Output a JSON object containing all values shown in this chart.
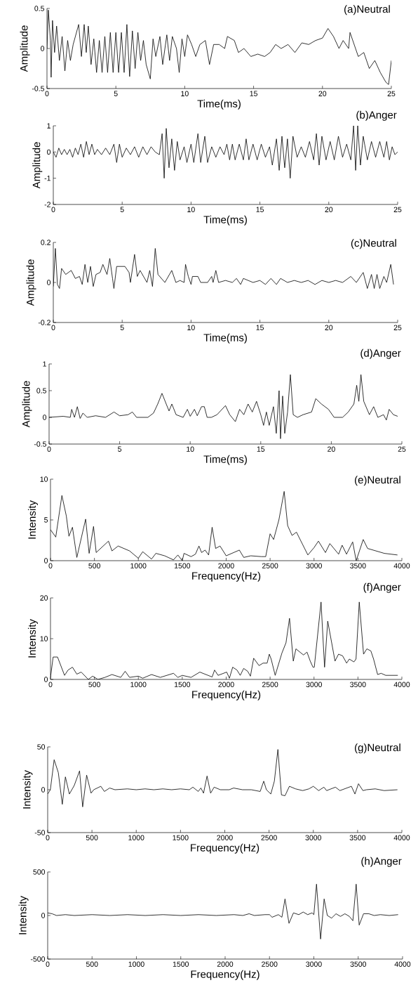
{
  "chart_data": [
    {
      "type": "line",
      "title": "(a)Neutral",
      "xlabel": "Time(ms)",
      "ylabel": "Amplitude",
      "color": "#000000",
      "xlim": [
        0,
        25
      ],
      "xticks": [
        0,
        5,
        10,
        15,
        20,
        25
      ],
      "ylim": [
        -0.5,
        0.5
      ],
      "yticks": [
        -0.5,
        0,
        0.5
      ],
      "x": [
        0,
        0.1,
        0.25,
        0.3,
        0.4,
        0.55,
        0.7,
        0.9,
        1.1,
        1.3,
        1.5,
        1.7,
        1.9,
        2.3,
        2.5,
        2.7,
        2.85,
        3.0,
        3.2,
        3.4,
        3.6,
        3.8,
        4.0,
        4.2,
        4.4,
        4.6,
        4.8,
        5.0,
        5.2,
        5.4,
        5.6,
        5.8,
        6.0,
        6.2,
        6.4,
        6.6,
        6.8,
        7.0,
        7.2,
        7.5,
        7.7,
        7.9,
        8.2,
        8.4,
        8.7,
        8.9,
        9.1,
        9.4,
        9.6,
        9.8,
        10.0,
        10.2,
        10.5,
        10.8,
        11.1,
        11.5,
        11.8,
        12.1,
        12.5,
        12.9,
        13.1,
        13.6,
        13.9,
        14.3,
        14.8,
        15.3,
        15.8,
        16.2,
        16.6,
        17.0,
        17.5,
        18.0,
        18.5,
        19.0,
        19.5,
        20.0,
        20.4,
        20.8,
        21.2,
        21.5,
        21.9,
        22.0,
        22.6,
        23.0,
        23.4,
        23.8,
        24.2,
        24.6,
        24.8,
        25.0
      ],
      "values": [
        0,
        0.48,
        0.1,
        -0.36,
        0.35,
        -0.05,
        0.28,
        -0.15,
        0.15,
        -0.28,
        0.1,
        -0.15,
        0.05,
        0.3,
        -0.1,
        0.3,
        -0.05,
        0.28,
        -0.2,
        0.12,
        -0.3,
        0.1,
        -0.3,
        0.15,
        -0.3,
        0.2,
        -0.3,
        0.2,
        -0.3,
        0.2,
        -0.3,
        0.3,
        -0.35,
        0.22,
        -0.25,
        0.2,
        -0.15,
        0.1,
        -0.2,
        -0.38,
        0.12,
        -0.1,
        0.15,
        -0.2,
        0.17,
        -0.15,
        0.15,
        0.0,
        -0.3,
        0.12,
        -0.1,
        0.17,
        0.05,
        -0.1,
        0.05,
        0.1,
        -0.2,
        0.05,
        0.05,
        0.0,
        0.15,
        0.1,
        -0.05,
        0.0,
        -0.1,
        -0.07,
        -0.1,
        -0.05,
        0.05,
        0.0,
        0.05,
        -0.05,
        0.07,
        0.05,
        0.1,
        0.13,
        0.25,
        0.15,
        0.0,
        0.1,
        0.0,
        0.2,
        -0.1,
        -0.05,
        -0.25,
        -0.15,
        -0.3,
        -0.42,
        -0.45,
        -0.15
      ]
    },
    {
      "type": "line",
      "title": "(b)Anger",
      "xlabel": "Time(ms)",
      "ylabel": "Amplitude",
      "color": "#000000",
      "xlim": [
        0,
        25
      ],
      "xticks": [
        0,
        5,
        10,
        15,
        20,
        25
      ],
      "ylim": [
        -2,
        1
      ],
      "yticks": [
        -2,
        -1,
        0,
        1
      ],
      "x": [
        0,
        0.2,
        0.4,
        0.6,
        0.8,
        1.0,
        1.2,
        1.4,
        1.6,
        1.8,
        2.0,
        2.2,
        2.4,
        2.6,
        2.8,
        3.0,
        3.2,
        3.5,
        3.8,
        4.1,
        4.4,
        4.6,
        4.8,
        5.0,
        5.3,
        5.6,
        5.9,
        6.2,
        6.5,
        6.8,
        7.1,
        7.4,
        7.7,
        7.9,
        8.05,
        8.2,
        8.4,
        8.6,
        8.8,
        9.0,
        9.2,
        9.5,
        9.7,
        10.0,
        10.2,
        10.5,
        10.7,
        11.0,
        11.2,
        11.5,
        11.8,
        12.1,
        12.4,
        12.6,
        12.8,
        13.0,
        13.2,
        13.5,
        13.8,
        14.0,
        14.2,
        14.5,
        14.8,
        15.1,
        15.4,
        15.7,
        15.9,
        16.2,
        16.4,
        16.6,
        16.8,
        17.0,
        17.2,
        17.4,
        17.7,
        18.0,
        18.3,
        18.6,
        18.9,
        19.1,
        19.3,
        19.5,
        19.8,
        20.1,
        20.4,
        20.7,
        21.0,
        21.3,
        21.6,
        21.8,
        21.95,
        22.1,
        22.3,
        22.5,
        22.8,
        23.1,
        23.4,
        23.7,
        24.0,
        24.2,
        24.4,
        24.6,
        24.8,
        25.0
      ],
      "values": [
        0,
        -0.2,
        0.15,
        -0.1,
        0.1,
        -0.1,
        0.1,
        -0.2,
        0.15,
        -0.1,
        0.3,
        -0.2,
        0.4,
        -0.1,
        0.3,
        -0.1,
        0.1,
        -0.1,
        0.15,
        -0.1,
        0.3,
        -0.4,
        0.3,
        -0.2,
        0.15,
        -0.1,
        0.2,
        -0.2,
        0.2,
        -0.1,
        0.2,
        0.0,
        -0.1,
        0.7,
        -1.0,
        0.9,
        -0.6,
        0.5,
        -0.7,
        0.4,
        -0.3,
        0.2,
        -0.4,
        0.3,
        -0.4,
        0.7,
        -0.4,
        0.6,
        -0.4,
        0.2,
        -0.2,
        0.2,
        -0.1,
        0.3,
        -0.3,
        0.3,
        -0.3,
        0.3,
        -0.3,
        0.5,
        -0.3,
        0.3,
        -0.3,
        0.3,
        -0.2,
        0.2,
        -0.5,
        0.5,
        -0.7,
        0.6,
        -0.6,
        0.5,
        -1.0,
        0.6,
        -0.2,
        0.2,
        -0.2,
        0.4,
        -0.3,
        0.7,
        -0.5,
        0.6,
        -0.3,
        0.4,
        -0.3,
        0.6,
        -0.2,
        0.3,
        -0.3,
        1.0,
        -0.7,
        1.0,
        -0.5,
        0.6,
        -0.3,
        0.4,
        -0.2,
        0.4,
        -0.2,
        0.4,
        -0.3,
        0.2,
        -0.1,
        0.0
      ]
    },
    {
      "type": "line",
      "title": "(c)Neutral",
      "xlabel": "Time(ms)",
      "ylabel": "Amplitude",
      "color": "#000000",
      "xlim": [
        0,
        25
      ],
      "xticks": [
        0,
        5,
        10,
        15,
        20,
        25
      ],
      "ylim": [
        -0.2,
        0.2
      ],
      "yticks": [
        -0.2,
        0,
        0.2
      ],
      "x": [
        0,
        0.15,
        0.3,
        0.45,
        0.6,
        0.9,
        1.3,
        1.6,
        1.9,
        2.1,
        2.3,
        2.5,
        2.7,
        2.9,
        3.1,
        3.4,
        3.6,
        3.9,
        4.1,
        4.3,
        4.4,
        4.6,
        5.2,
        5.5,
        5.6,
        5.9,
        6.1,
        6.3,
        6.8,
        7.0,
        7.2,
        7.4,
        7.6,
        8.1,
        8.6,
        8.9,
        9.2,
        9.5,
        9.6,
        9.8,
        10.0,
        10.1,
        10.5,
        10.7,
        11.2,
        11.5,
        11.6,
        11.8,
        12.0,
        12.5,
        13.0,
        13.3,
        13.6,
        13.8,
        14.5,
        15.0,
        15.4,
        15.8,
        16.2,
        16.5,
        17.0,
        17.5,
        18.0,
        18.5,
        19.0,
        19.5,
        20.0,
        20.5,
        21.0,
        21.6,
        22.0,
        22.5,
        22.8,
        23.1,
        23.3,
        23.5,
        23.7,
        24.0,
        24.2,
        24.5,
        24.7
      ],
      "values": [
        -0.02,
        0.17,
        -0.01,
        -0.03,
        0.07,
        0.04,
        0.06,
        0.02,
        0.03,
        -0.01,
        0.09,
        0.0,
        0.08,
        -0.02,
        0.04,
        0.05,
        0.09,
        0.04,
        0.12,
        0.02,
        -0.03,
        0.08,
        0.08,
        0.05,
        0.0,
        0.14,
        0.03,
        0.06,
        0.0,
        0.06,
        -0.02,
        0.17,
        0.04,
        0.0,
        0.06,
        0.0,
        0.01,
        0.0,
        0.09,
        0.03,
        -0.01,
        0.03,
        0.03,
        0.0,
        0.0,
        0.03,
        0.0,
        0.06,
        0.0,
        0.01,
        0.0,
        0.02,
        -0.01,
        0.02,
        0.0,
        0.01,
        -0.01,
        0.02,
        -0.01,
        0.02,
        0.0,
        0.01,
        0.0,
        0.01,
        -0.01,
        0.01,
        0.0,
        0.01,
        0.0,
        0.03,
        0.0,
        0.05,
        -0.03,
        0.04,
        -0.03,
        0.04,
        -0.03,
        0.03,
        0.0,
        0.09,
        -0.01
      ]
    },
    {
      "type": "line",
      "title": "(d)Anger",
      "xlabel": "Time(ms)",
      "ylabel": "Amplitude",
      "color": "#000000",
      "xlim": [
        0,
        25
      ],
      "xticks": [
        0,
        5,
        10,
        15,
        20,
        25
      ],
      "ylim": [
        -0.5,
        1
      ],
      "yticks": [
        -0.5,
        0,
        0.5,
        1
      ],
      "x": [
        0,
        1.0,
        1.5,
        1.6,
        1.8,
        2.0,
        2.2,
        2.4,
        2.7,
        3.3,
        4.0,
        4.6,
        5.0,
        5.6,
        5.9,
        6.2,
        7.0,
        7.4,
        7.7,
        8.0,
        8.3,
        8.5,
        8.7,
        9.0,
        9.5,
        9.8,
        10.0,
        10.3,
        10.5,
        10.8,
        11.0,
        11.2,
        11.5,
        11.9,
        12.5,
        12.8,
        13.2,
        13.5,
        13.8,
        14.1,
        14.4,
        14.7,
        15.0,
        15.2,
        15.4,
        15.6,
        15.9,
        16.1,
        16.3,
        16.4,
        16.55,
        16.7,
        16.9,
        17.1,
        17.3,
        17.6,
        18.0,
        18.6,
        18.9,
        19.3,
        19.8,
        20.2,
        20.8,
        21.2,
        21.6,
        21.8,
        21.95,
        22.1,
        22.3,
        22.7,
        23.0,
        23.3,
        23.7,
        23.9,
        24.1,
        24.4,
        24.7
      ],
      "values": [
        0,
        0.02,
        0.0,
        0.15,
        0.0,
        0.2,
        -0.02,
        0.08,
        0.0,
        0.03,
        0.0,
        0.1,
        0.03,
        0.05,
        0.1,
        0.0,
        0.0,
        0.08,
        0.25,
        0.45,
        0.25,
        0.12,
        0.25,
        0.05,
        0.0,
        0.15,
        0.02,
        0.15,
        0.03,
        0.2,
        0.2,
        0.0,
        0.0,
        0.05,
        0.22,
        0.05,
        -0.08,
        0.15,
        0.05,
        0.25,
        0.1,
        0.3,
        0.05,
        -0.15,
        0.1,
        -0.15,
        0.2,
        -0.3,
        0.5,
        -0.4,
        0.4,
        -0.3,
        0.1,
        0.8,
        0.05,
        0.0,
        0.05,
        0.1,
        0.35,
        0.25,
        0.15,
        0.0,
        0.0,
        0.1,
        0.25,
        0.6,
        0.3,
        0.8,
        0.3,
        0.05,
        0.2,
        0.0,
        0.05,
        -0.05,
        0.15,
        0.05,
        0.02
      ]
    },
    {
      "type": "line",
      "title": "(e)Neutral",
      "xlabel": "Frequency(Hz)",
      "ylabel": "Intensity",
      "color": "#000000",
      "xlim": [
        0,
        4000
      ],
      "xticks": [
        0,
        500,
        1000,
        1500,
        2000,
        2500,
        3000,
        3500,
        4000
      ],
      "ylim": [
        0,
        10
      ],
      "yticks": [
        0,
        5,
        10
      ],
      "x": [
        0,
        60,
        130,
        180,
        210,
        250,
        300,
        400,
        440,
        490,
        520,
        660,
        700,
        770,
        900,
        1000,
        1050,
        1150,
        1200,
        1300,
        1400,
        1450,
        1500,
        1520,
        1600,
        1650,
        1690,
        1720,
        1760,
        1800,
        1840,
        1880,
        1930,
        2000,
        2150,
        2200,
        2280,
        2400,
        2450,
        2500,
        2540,
        2600,
        2660,
        2700,
        2750,
        2800,
        2930,
        3000,
        3050,
        3130,
        3180,
        3280,
        3320,
        3370,
        3440,
        3480,
        3560,
        3610,
        3800,
        3950
      ],
      "values": [
        3.8,
        2.9,
        8.0,
        5.5,
        3.0,
        4.1,
        0.4,
        5.1,
        0.9,
        4.2,
        1.0,
        2.4,
        1.2,
        1.8,
        1.2,
        0.3,
        1.1,
        0.2,
        0.9,
        0.6,
        0.1,
        0.7,
        0.0,
        0.9,
        0.5,
        0.8,
        1.8,
        1.0,
        1.3,
        0.7,
        4.1,
        1.5,
        1.8,
        0.6,
        1.3,
        0.4,
        0.6,
        0.5,
        0.5,
        3.3,
        2.6,
        5.0,
        8.5,
        4.3,
        3.1,
        3.5,
        0.7,
        1.6,
        2.4,
        1.0,
        2.1,
        0.8,
        1.9,
        0.8,
        2.3,
        0.0,
        2.6,
        1.5,
        0.9,
        0.7
      ]
    },
    {
      "type": "line",
      "title": "(f)Anger",
      "xlabel": "Frequency(Hz)",
      "ylabel": "Intensity",
      "color": "#000000",
      "xlim": [
        0,
        4000
      ],
      "xticks": [
        0,
        500,
        1000,
        1500,
        2000,
        2500,
        3000,
        3500,
        4000
      ],
      "ylim": [
        0,
        20
      ],
      "yticks": [
        0,
        10,
        20
      ],
      "x": [
        0,
        30,
        80,
        160,
        200,
        250,
        300,
        350,
        430,
        480,
        540,
        620,
        700,
        800,
        850,
        900,
        1000,
        1050,
        1150,
        1250,
        1400,
        1450,
        1500,
        1600,
        1700,
        1840,
        1868,
        1908,
        2006,
        2037,
        2074,
        2123,
        2160,
        2199,
        2245,
        2276,
        2313,
        2374,
        2420,
        2466,
        2491,
        2512,
        2558,
        2635,
        2681,
        2721,
        2764,
        2794,
        2880,
        2920,
        2957,
        2988,
        3003,
        3080,
        3120,
        3156,
        3239,
        3279,
        3325,
        3371,
        3402,
        3454,
        3478,
        3515,
        3564,
        3601,
        3647,
        3678,
        3724,
        3764,
        3816,
        3954
      ],
      "values": [
        0.5,
        5.5,
        5.5,
        1.0,
        2.3,
        3.0,
        1.3,
        1.8,
        0.0,
        0.8,
        0.0,
        0.5,
        1.2,
        0.5,
        2.0,
        0.5,
        0.8,
        0.3,
        1.2,
        0.5,
        1.5,
        0.5,
        1.0,
        0.5,
        1.8,
        0.6,
        2.3,
        1.0,
        1.8,
        0.3,
        3.0,
        2.3,
        1.0,
        2.7,
        2.0,
        0.8,
        5.2,
        3.4,
        4.0,
        4.0,
        6.2,
        5.0,
        1.0,
        6.5,
        9.0,
        15.0,
        4.5,
        7.5,
        6.0,
        6.7,
        4.5,
        3.0,
        3.0,
        19.0,
        3.0,
        14.3,
        4.5,
        6.2,
        5.8,
        4.0,
        5.0,
        4.3,
        5.0,
        19.0,
        6.2,
        7.5,
        7.0,
        5.0,
        1.2,
        1.5,
        1.0,
        1.0
      ]
    },
    {
      "type": "line",
      "title": "(g)Neutral",
      "xlabel": "Frequency(Hz)",
      "ylabel": "Intensity",
      "color": "#000000",
      "xlim": [
        0,
        4000
      ],
      "xticks": [
        0,
        500,
        1000,
        1500,
        2000,
        2500,
        3000,
        3500,
        4000
      ],
      "ylim": [
        -50,
        50
      ],
      "yticks": [
        -50,
        0,
        50
      ],
      "x": [
        0,
        30,
        73,
        120,
        165,
        200,
        245,
        300,
        360,
        395,
        440,
        490,
        520,
        600,
        640,
        700,
        760,
        900,
        1000,
        1100,
        1200,
        1300,
        1400,
        1500,
        1600,
        1640,
        1700,
        1730,
        1760,
        1800,
        1840,
        1880,
        1950,
        2050,
        2100,
        2200,
        2300,
        2400,
        2440,
        2470,
        2520,
        2560,
        2600,
        2640,
        2680,
        2730,
        2800,
        2880,
        2950,
        3000,
        3060,
        3120,
        3150,
        3250,
        3300,
        3430,
        3470,
        3510,
        3560,
        3600,
        3700,
        3800,
        3950
      ],
      "values": [
        -5,
        0,
        35,
        20,
        -17,
        15,
        -5,
        5,
        22,
        -20,
        17,
        -4,
        0,
        4,
        -2,
        2,
        0,
        1,
        0,
        1,
        0,
        1,
        0,
        1,
        0,
        3,
        -2,
        2,
        -4,
        16,
        -4,
        3,
        0,
        0,
        2,
        0,
        0,
        -2,
        10,
        0,
        -5,
        10,
        47,
        -6,
        -7,
        4,
        1,
        -1,
        1,
        4,
        -1,
        3,
        -1,
        3,
        -1,
        4,
        -5,
        7,
        -1,
        0,
        1,
        -1,
        0
      ]
    },
    {
      "type": "line",
      "title": "(h)Anger",
      "xlabel": "Frequency(Hz)",
      "ylabel": "Intensity",
      "color": "#000000",
      "xlim": [
        0,
        4000
      ],
      "xticks": [
        0,
        500,
        1000,
        1500,
        2000,
        2500,
        3000,
        3500,
        4000
      ],
      "ylim": [
        -500,
        500
      ],
      "yticks": [
        -500,
        0,
        500
      ],
      "x": [
        0,
        50,
        100,
        200,
        300,
        500,
        700,
        900,
        1100,
        1300,
        1500,
        1700,
        1900,
        2100,
        2200,
        2270,
        2330,
        2450,
        2500,
        2530,
        2600,
        2640,
        2675,
        2720,
        2770,
        2830,
        2880,
        2930,
        2980,
        3000,
        3030,
        3076,
        3116,
        3152,
        3200,
        3250,
        3300,
        3350,
        3400,
        3440,
        3477,
        3511,
        3560,
        3620,
        3680,
        3750,
        3850,
        3950
      ],
      "values": [
        30,
        20,
        0,
        10,
        0,
        10,
        0,
        10,
        0,
        10,
        0,
        10,
        0,
        10,
        0,
        20,
        0,
        10,
        10,
        -20,
        10,
        -20,
        190,
        -90,
        30,
        10,
        40,
        10,
        30,
        10,
        360,
        -270,
        190,
        0,
        -30,
        20,
        -10,
        20,
        -10,
        -60,
        360,
        -110,
        20,
        20,
        0,
        10,
        0,
        10
      ]
    }
  ]
}
